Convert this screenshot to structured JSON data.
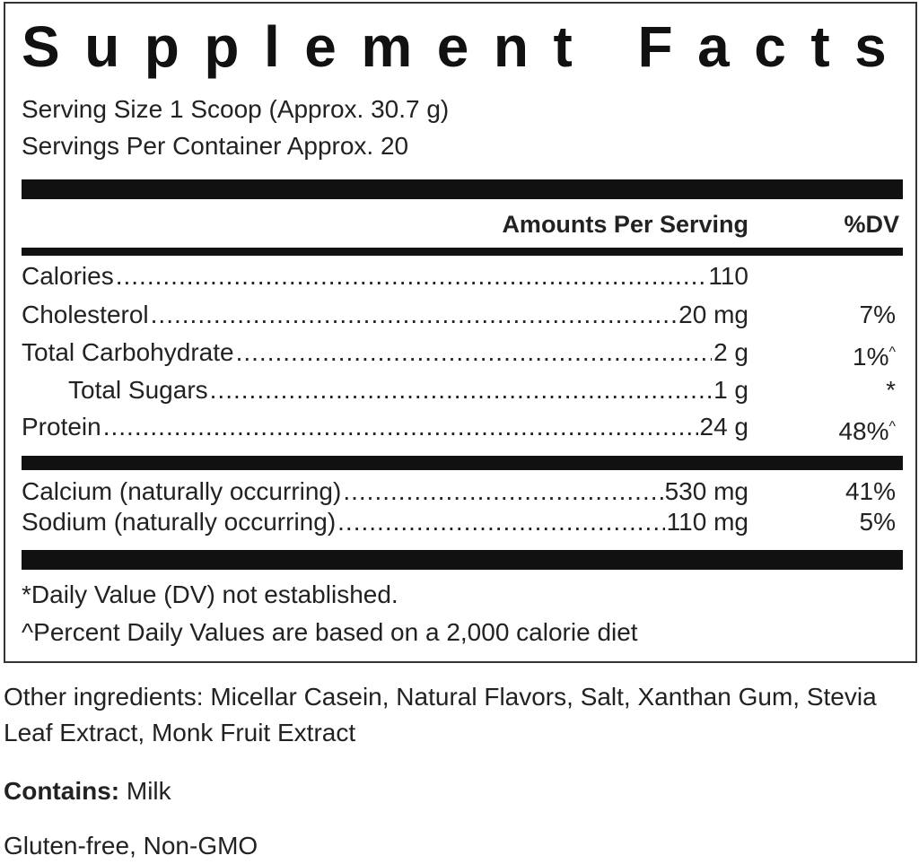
{
  "title": "Supplement Facts",
  "serving_size": "Serving Size 1 Scoop (Approx. 30.7 g)",
  "servings_per_container": "Servings Per Container Approx. 20",
  "header": {
    "amount": "Amounts Per Serving",
    "dv": "%DV"
  },
  "groups": [
    [
      {
        "name": "Calories",
        "amount": "110"
      },
      {
        "name": "Cholesterol",
        "amount": "20 mg",
        "dv": "7%"
      },
      {
        "name": "Total Carbohydrate",
        "amount": "2 g",
        "dv": "1%",
        "dv_mark": "^"
      },
      {
        "name": "Total Sugars",
        "amount": "1 g",
        "dv_mark": "*"
      },
      {
        "name": "Protein",
        "amount": "24 g",
        "dv": "48%",
        "dv_mark": "^"
      }
    ],
    [
      {
        "name": "Calcium (naturally occurring)",
        "amount": "530 mg",
        "dv": "41%"
      },
      {
        "name": "Sodium (naturally occurring)",
        "amount": "110 mg",
        "dv": "5%"
      }
    ]
  ],
  "footnotes": [
    "*Daily Value (DV) not established.",
    "^Percent Daily Values are based on a 2,000 calorie diet"
  ],
  "other_ingredients": "Other ingredients: Micellar Casein, Natural Flavors, Salt, Xanthan Gum, Stevia Leaf Extract, Monk Fruit Extract",
  "contains": {
    "label": "Contains:",
    "value": "Milk"
  },
  "claims": "Gluten-free, Non-GMO"
}
